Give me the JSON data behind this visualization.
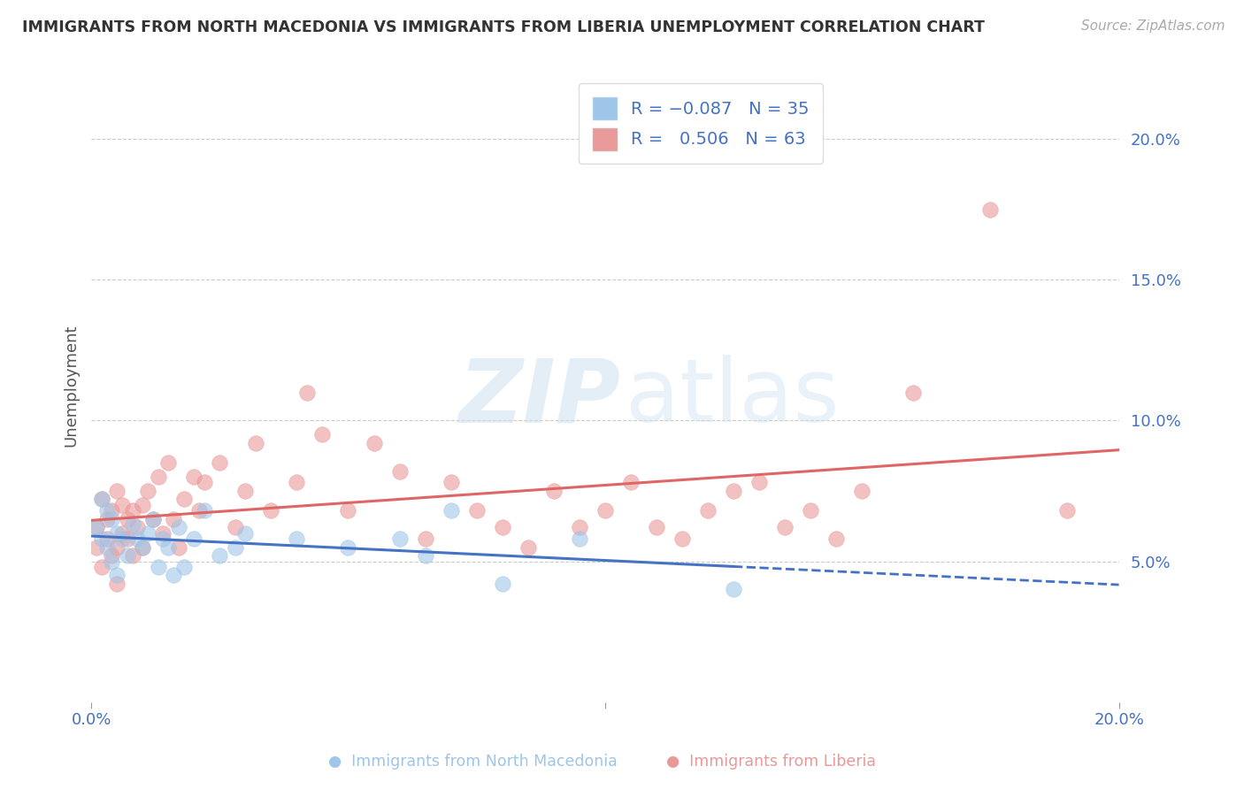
{
  "title": "IMMIGRANTS FROM NORTH MACEDONIA VS IMMIGRANTS FROM LIBERIA UNEMPLOYMENT CORRELATION CHART",
  "source": "Source: ZipAtlas.com",
  "ylabel": "Unemployment",
  "right_yticks": [
    "20.0%",
    "15.0%",
    "10.0%",
    "5.0%"
  ],
  "right_ytick_values": [
    0.2,
    0.15,
    0.1,
    0.05
  ],
  "legend_bottom1": "Immigrants from North Macedonia",
  "legend_bottom2": "Immigrants from Liberia",
  "blue_scatter_color": "#9fc5e8",
  "pink_scatter_color": "#ea9999",
  "blue_line_color": "#4472c4",
  "pink_line_color": "#e06666",
  "nm_R": -0.087,
  "nm_N": 35,
  "lib_R": 0.506,
  "lib_N": 63,
  "watermark_zip": "ZIP",
  "watermark_atlas": "atlas",
  "xmin": 0.0,
  "xmax": 0.2,
  "ymin": 0.0,
  "ymax": 0.225,
  "nm_x": [
    0.001,
    0.002,
    0.002,
    0.003,
    0.003,
    0.004,
    0.004,
    0.005,
    0.005,
    0.006,
    0.007,
    0.008,
    0.009,
    0.01,
    0.011,
    0.012,
    0.013,
    0.014,
    0.015,
    0.016,
    0.017,
    0.018,
    0.02,
    0.022,
    0.025,
    0.028,
    0.03,
    0.04,
    0.05,
    0.06,
    0.065,
    0.07,
    0.08,
    0.095,
    0.125
  ],
  "nm_y": [
    0.062,
    0.058,
    0.072,
    0.055,
    0.068,
    0.065,
    0.05,
    0.06,
    0.045,
    0.058,
    0.052,
    0.063,
    0.058,
    0.055,
    0.06,
    0.065,
    0.048,
    0.058,
    0.055,
    0.045,
    0.062,
    0.048,
    0.058,
    0.068,
    0.052,
    0.055,
    0.06,
    0.058,
    0.055,
    0.058,
    0.052,
    0.068,
    0.042,
    0.058,
    0.04
  ],
  "lib_x": [
    0.001,
    0.001,
    0.002,
    0.002,
    0.003,
    0.003,
    0.004,
    0.004,
    0.005,
    0.005,
    0.005,
    0.006,
    0.006,
    0.007,
    0.007,
    0.008,
    0.008,
    0.009,
    0.01,
    0.01,
    0.011,
    0.012,
    0.013,
    0.014,
    0.015,
    0.016,
    0.017,
    0.018,
    0.02,
    0.021,
    0.022,
    0.025,
    0.028,
    0.03,
    0.032,
    0.035,
    0.04,
    0.042,
    0.045,
    0.05,
    0.055,
    0.06,
    0.065,
    0.07,
    0.075,
    0.08,
    0.085,
    0.09,
    0.095,
    0.1,
    0.105,
    0.11,
    0.115,
    0.12,
    0.125,
    0.13,
    0.135,
    0.14,
    0.145,
    0.15,
    0.16,
    0.175,
    0.19
  ],
  "lib_y": [
    0.062,
    0.055,
    0.072,
    0.048,
    0.065,
    0.058,
    0.068,
    0.052,
    0.075,
    0.055,
    0.042,
    0.06,
    0.07,
    0.065,
    0.058,
    0.068,
    0.052,
    0.062,
    0.07,
    0.055,
    0.075,
    0.065,
    0.08,
    0.06,
    0.085,
    0.065,
    0.055,
    0.072,
    0.08,
    0.068,
    0.078,
    0.085,
    0.062,
    0.075,
    0.092,
    0.068,
    0.078,
    0.11,
    0.095,
    0.068,
    0.092,
    0.082,
    0.058,
    0.078,
    0.068,
    0.062,
    0.055,
    0.075,
    0.062,
    0.068,
    0.078,
    0.062,
    0.058,
    0.068,
    0.075,
    0.078,
    0.062,
    0.068,
    0.058,
    0.075,
    0.11,
    0.175,
    0.068
  ]
}
